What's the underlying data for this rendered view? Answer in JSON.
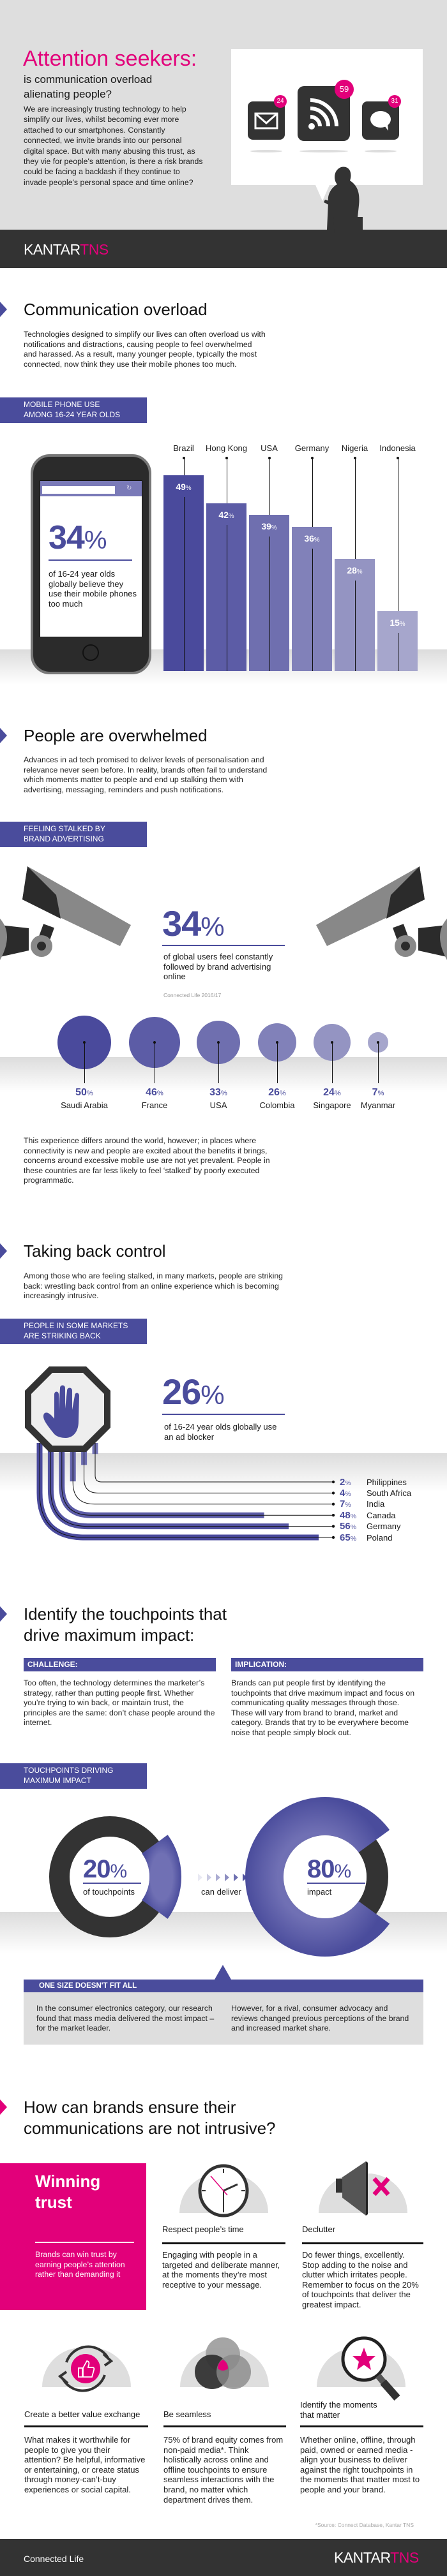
{
  "header": {
    "title": "Attention seekers:",
    "subtitle_1": "is communication overload",
    "subtitle_2": "alienating people?",
    "body": "We are increasingly trusting technology to help simplify our lives, whilst becoming ever more attached to our smartphones. Constantly connected, we invite brands into our personal digital space. But with many abusing this trust, as they vie for people's attention, is there a risk brands could be facing a backlash if they continue to invade people's personal space and time online?",
    "badges": {
      "email": "24",
      "rss": "59",
      "chat": "31"
    }
  },
  "brand": {
    "kantar": "KANTAR",
    "tns": "TNS"
  },
  "colors": {
    "purple": "#4a4c9c",
    "pink": "#e2007a",
    "dark": "#333333",
    "light_gray": "#dedede"
  },
  "overload": {
    "title": "Communication overload",
    "body": "Technologies designed to simplify our lives can often overload us with notifications and distractions, causing people to feel overwhelmed and harassed. As a result, many younger people, typically the most connected, now think they use their mobile phones too much.",
    "label_1": "MOBILE PHONE USE",
    "label_2": "AMONG 16-24 YEAR OLDS",
    "stat": "34",
    "pct": "%",
    "stat_text": "of 16-24 year olds globally believe they use their mobile phones too much"
  },
  "overwhelmed": {
    "title": "People are overwhelmed",
    "body": "Advances in ad tech promised to deliver levels of personalisation and relevance never seen before. In reality, brands often fail to understand which moments matter to people and end up stalking them with advertising, messaging, reminders and push notifications.",
    "label_1": "FEELING STALKED BY",
    "label_2": "BRAND ADVERTISING",
    "stat": "34",
    "pct": "%",
    "stat_text": "of global users feel constantly followed by brand advertising online",
    "source": "Connected Life 2016/17",
    "body_2": "This experience differs around the world, however; in places where connectivity is new and people are excited about the benefits it brings, concerns around excessive mobile use are not yet prevalent. People in these countries are far less likely to feel ‘stalked’ by poorly executed programmatic."
  },
  "control": {
    "title": "Taking back control",
    "body": "Among those who are feeling stalked, in many markets, people are striking back: wrestling back control from an online experience which is becoming increasingly intrusive.",
    "label_1": "PEOPLE IN SOME MARKETS",
    "label_2": "ARE STRIKING BACK",
    "stat": "26",
    "pct": "%",
    "stat_text": "of 16-24 year olds globally use an ad blocker"
  },
  "touchpoints": {
    "title_1": "Identify the touchpoints that",
    "title_2": "drive maximum impact:",
    "challenge_label": "CHALLENGE:",
    "challenge": "Too often, the technology determines the marketer’s strategy, rather than putting people first. Whether you’re trying to win back, or maintain trust, the principles are the same: don’t chase people around the internet.",
    "implication_label": "IMPLICATION:",
    "implication": "Brands can put people first by identifying the touchpoints that drive maximum impact and focus on communicating quality messages through those. These will vary from brand to brand, market and category. Brands that try to be everywhere become noise that people simply block out.",
    "label_1": "TOUCHPOINTS DRIVING",
    "label_2": "MAXIMUM IMPACT",
    "left_stat": "20",
    "left_text": "of touchpoints",
    "left_fraction": 0.2,
    "middle": "can deliver",
    "right_stat": "80",
    "right_text": "impact",
    "right_fraction": 0.8,
    "pct": "%",
    "box_title": "ONE SIZE DOESN'T FIT ALL",
    "box_left": "In the consumer electronics category, our research found that mass media delivered the most impact – for the market leader.",
    "box_right": "However, for a rival, consumer advocacy and reviews changed previous perceptions of the brand and increased market share."
  },
  "brands": {
    "title_1": "How can brands ensure their",
    "title_2": "communications are not intrusive?",
    "trust_title_1": "Winning",
    "trust_title_2": "trust",
    "trust_text": "Brands can win trust by earning people’s attention rather than demanding it",
    "items": [
      {
        "icon": "clock-icon",
        "title": "Respect people’s time",
        "text": "Engaging with people in a targeted and deliberate manner, at the moments they’re most receptive to your message."
      },
      {
        "icon": "muted-speaker-icon",
        "title": "Declutter",
        "text": "Do fewer things, excellently. Stop adding to the noise and clutter which irritates people. Remember to focus on the 20% of touchpoints that deliver the greatest impact."
      },
      {
        "icon": "thumbs-up-cycle-icon",
        "title": "Create a better value exchange",
        "text": "What makes it worthwhile for people to give you their attention? Be helpful, informative or entertaining, or create status through money-can’t-buy experiences or social capital."
      },
      {
        "icon": "venn-icon",
        "title": "Be seamless",
        "text": "75% of brand equity comes from non-paid media*. Think holistically across online and offline touchpoints to ensure seamless interactions with the brand, no matter which department drives them."
      },
      {
        "icon": "magnifier-star-icon",
        "title": "Identify the moments that matter",
        "text": "Whether online, offline, through paid, owned or earned media - align your business to deliver against the right touchpoints in the moments that matter most to people and your brand."
      }
    ],
    "source": "*Source: Connect Database, Kantar TNS"
  },
  "footer": {
    "left": "Connected Life"
  },
  "chart_data": [
    {
      "type": "bar",
      "categories": [
        "Brazil",
        "Hong Kong",
        "USA",
        "Germany",
        "Nigeria",
        "Indonesia"
      ],
      "values": [
        49,
        42,
        39,
        36,
        28,
        15
      ],
      "unit": "%"
    },
    {
      "type": "bubble",
      "categories": [
        "Saudi Arabia",
        "France",
        "USA",
        "Colombia",
        "Singapore",
        "Myanmar"
      ],
      "values": [
        50,
        46,
        33,
        26,
        24,
        7
      ],
      "unit": "%"
    },
    {
      "type": "bar",
      "orientation": "horizontal",
      "categories": [
        "Philippines",
        "South Africa",
        "India",
        "Canada",
        "Germany",
        "Poland"
      ],
      "values": [
        2,
        4,
        7,
        48,
        56,
        65
      ],
      "unit": "%"
    }
  ]
}
